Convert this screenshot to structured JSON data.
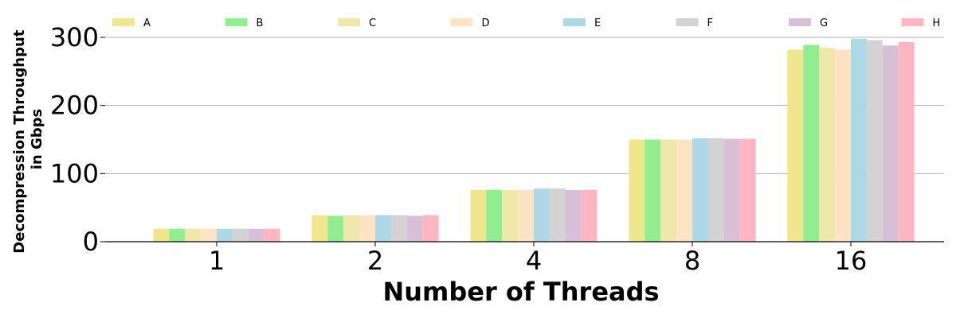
{
  "chart_data": {
    "type": "bar",
    "title": "",
    "xlabel": "Number of Threads",
    "ylabel_lines": [
      "Decompression Throughput",
      "in Gbps"
    ],
    "categories": [
      "1",
      "2",
      "4",
      "8",
      "16"
    ],
    "ylim": [
      0,
      330
    ],
    "yticks": [
      0,
      100,
      200,
      300
    ],
    "grid": "horizontal",
    "legend_position": "top",
    "series": [
      {
        "name": "A",
        "color": "#f0e68c",
        "values": [
          19,
          39,
          76,
          150,
          282
        ]
      },
      {
        "name": "B",
        "color": "#90ee90",
        "values": [
          19,
          38,
          76,
          150,
          289
        ]
      },
      {
        "name": "C",
        "color": "#eee8aa",
        "values": [
          19,
          39,
          76,
          150,
          285
        ]
      },
      {
        "name": "D",
        "color": "#ffe4c4",
        "values": [
          19,
          39,
          76,
          150,
          282
        ]
      },
      {
        "name": "E",
        "color": "#add8e6",
        "values": [
          19,
          39,
          78,
          152,
          298
        ]
      },
      {
        "name": "F",
        "color": "#d3d3d3",
        "values": [
          19,
          39,
          78,
          152,
          296
        ]
      },
      {
        "name": "G",
        "color": "#d8bfd8",
        "values": [
          19,
          38,
          76,
          151,
          288
        ]
      },
      {
        "name": "H",
        "color": "#ffb6c1",
        "values": [
          19,
          39,
          76,
          151,
          293
        ]
      }
    ]
  }
}
